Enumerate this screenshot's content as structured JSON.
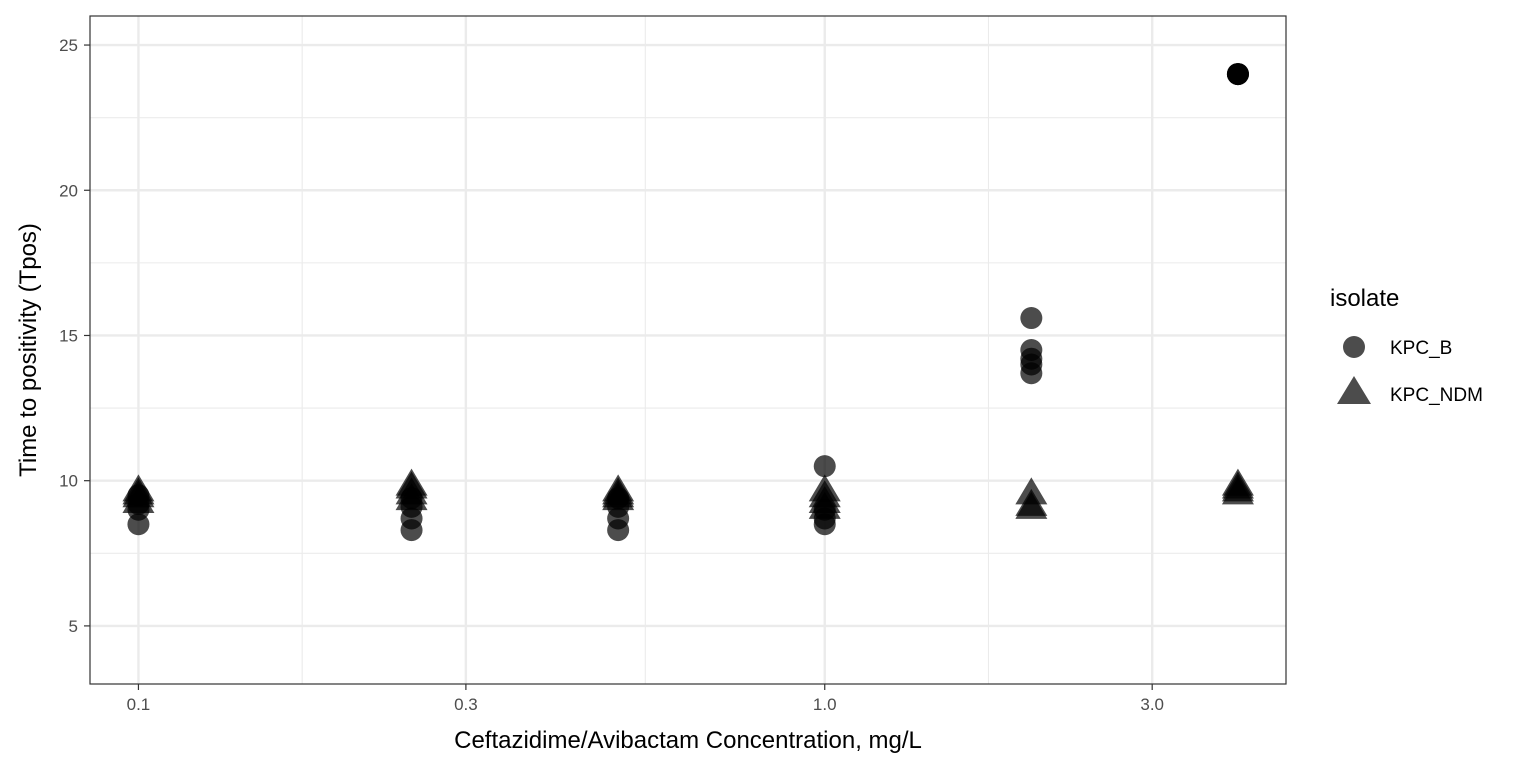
{
  "chart_data": {
    "type": "scatter",
    "title": "",
    "xlabel": "Ceftazidime/Avibactam Concentration, mg/L",
    "ylabel": "Time to positivity (Tpos)",
    "x_scale": "log10",
    "xlim": [
      0.085,
      4.7
    ],
    "ylim": [
      3,
      26
    ],
    "x_ticks": [
      0.1,
      0.3,
      1.0,
      3.0
    ],
    "x_tick_labels": [
      "0.1",
      "0.3",
      "1.0",
      "3.0"
    ],
    "y_ticks": [
      5,
      10,
      15,
      20,
      25
    ],
    "y_tick_labels": [
      "5",
      "10",
      "15",
      "20",
      "25"
    ],
    "grid": true,
    "legend": {
      "title": "isolate",
      "position": "right"
    },
    "point_color": "#000000",
    "point_alpha": 0.7,
    "series": [
      {
        "name": "KPC_B",
        "marker": "circle",
        "points": [
          {
            "x": 0.1,
            "y": 8.5
          },
          {
            "x": 0.1,
            "y": 9.0
          },
          {
            "x": 0.1,
            "y": 9.2
          },
          {
            "x": 0.1,
            "y": 9.5
          },
          {
            "x": 0.25,
            "y": 8.3
          },
          {
            "x": 0.25,
            "y": 8.7
          },
          {
            "x": 0.25,
            "y": 9.1
          },
          {
            "x": 0.25,
            "y": 9.4
          },
          {
            "x": 0.5,
            "y": 8.3
          },
          {
            "x": 0.5,
            "y": 8.7
          },
          {
            "x": 0.5,
            "y": 9.1
          },
          {
            "x": 0.5,
            "y": 9.4
          },
          {
            "x": 1.0,
            "y": 8.5
          },
          {
            "x": 1.0,
            "y": 8.7
          },
          {
            "x": 1.0,
            "y": 9.0
          },
          {
            "x": 1.0,
            "y": 10.5
          },
          {
            "x": 2.0,
            "y": 13.7
          },
          {
            "x": 2.0,
            "y": 14.0
          },
          {
            "x": 2.0,
            "y": 14.2
          },
          {
            "x": 2.0,
            "y": 14.5
          },
          {
            "x": 2.0,
            "y": 15.6
          },
          {
            "x": 4.0,
            "y": 24.0
          },
          {
            "x": 4.0,
            "y": 24.0
          },
          {
            "x": 4.0,
            "y": 24.0
          },
          {
            "x": 4.0,
            "y": 24.0
          }
        ]
      },
      {
        "name": "KPC_NDM",
        "marker": "triangle",
        "points": [
          {
            "x": 0.1,
            "y": 9.3
          },
          {
            "x": 0.1,
            "y": 9.5
          },
          {
            "x": 0.1,
            "y": 9.6
          },
          {
            "x": 0.1,
            "y": 9.7
          },
          {
            "x": 0.25,
            "y": 9.4
          },
          {
            "x": 0.25,
            "y": 9.6
          },
          {
            "x": 0.25,
            "y": 9.8
          },
          {
            "x": 0.25,
            "y": 9.9
          },
          {
            "x": 0.5,
            "y": 9.4
          },
          {
            "x": 0.5,
            "y": 9.5
          },
          {
            "x": 0.5,
            "y": 9.6
          },
          {
            "x": 0.5,
            "y": 9.7
          },
          {
            "x": 1.0,
            "y": 9.1
          },
          {
            "x": 1.0,
            "y": 9.3
          },
          {
            "x": 1.0,
            "y": 9.5
          },
          {
            "x": 1.0,
            "y": 9.7
          },
          {
            "x": 2.0,
            "y": 9.1
          },
          {
            "x": 2.0,
            "y": 9.2
          },
          {
            "x": 2.0,
            "y": 9.6
          },
          {
            "x": 4.0,
            "y": 9.6
          },
          {
            "x": 4.0,
            "y": 9.7
          },
          {
            "x": 4.0,
            "y": 9.8
          },
          {
            "x": 4.0,
            "y": 9.9
          }
        ]
      }
    ]
  }
}
